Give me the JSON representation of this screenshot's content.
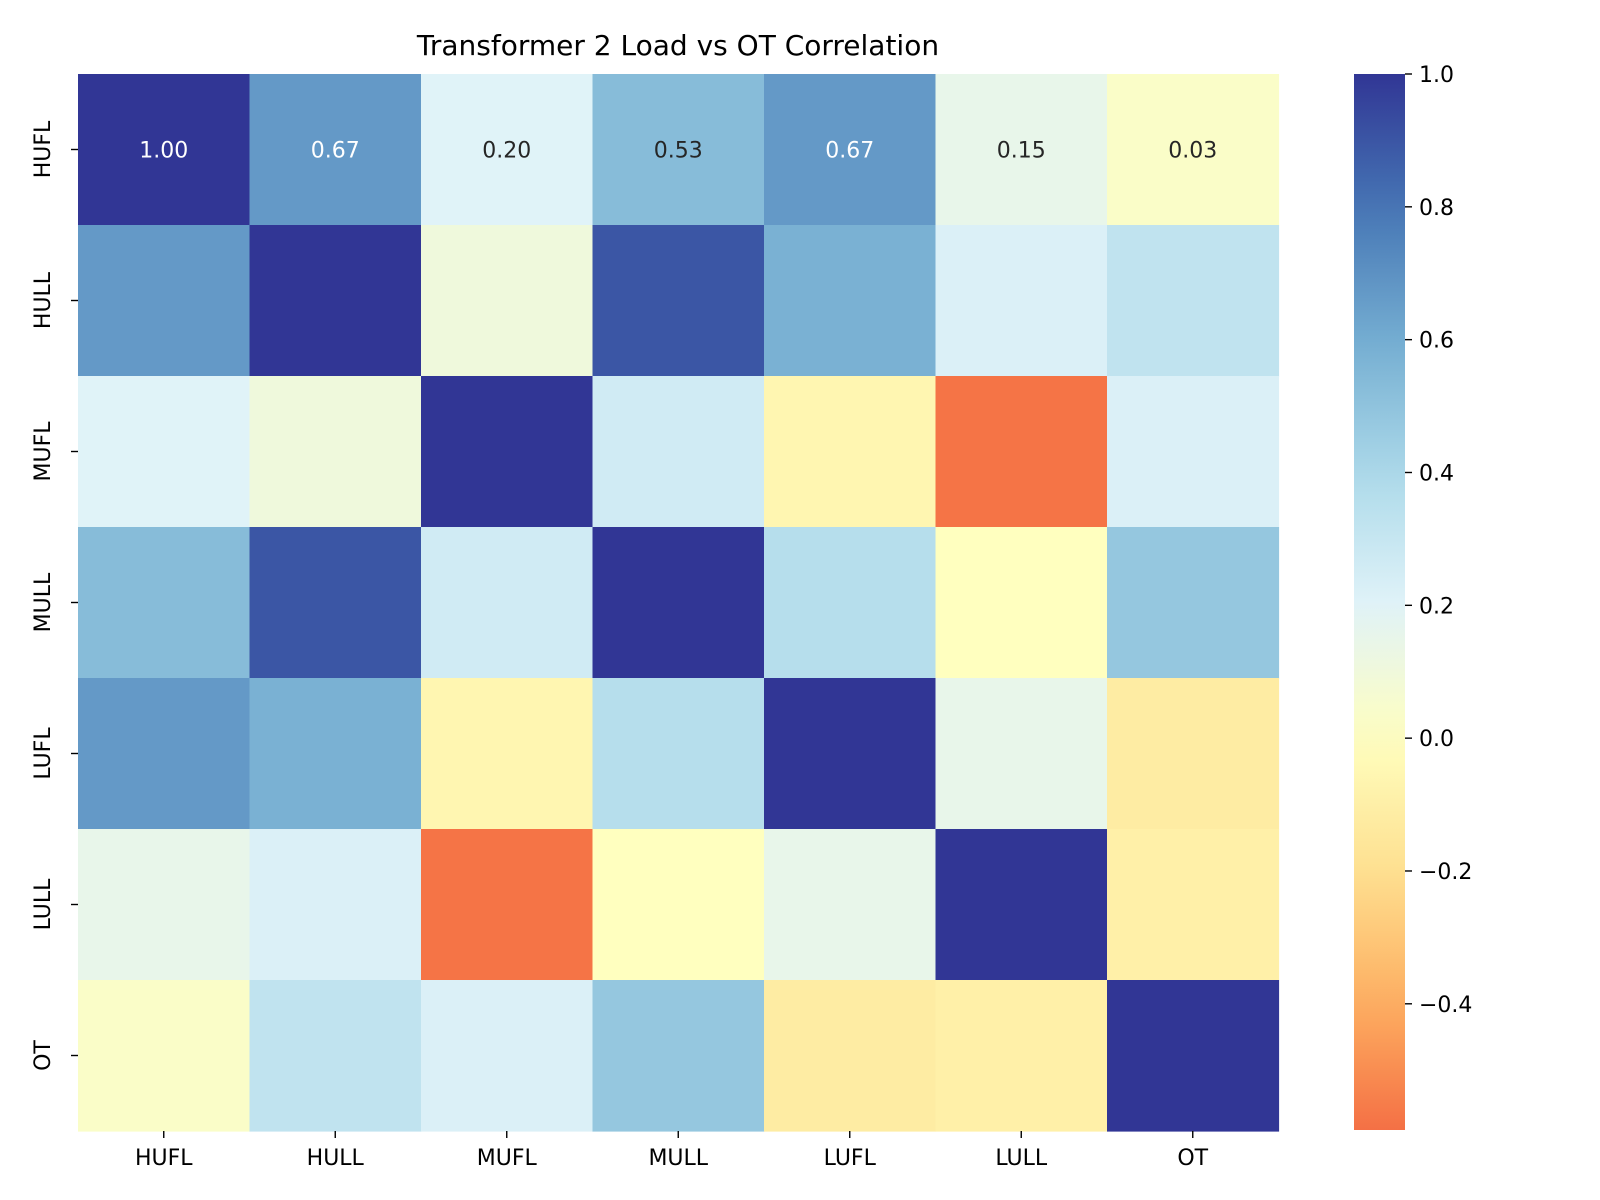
{
  "chart_data": {
    "type": "heatmap",
    "title": "Transformer 2 Load vs OT Correlation",
    "xlabel": "",
    "ylabel": "",
    "x_labels": [
      "HUFL",
      "HULL",
      "MUFL",
      "MULL",
      "LUFL",
      "LULL",
      "OT"
    ],
    "y_labels": [
      "HUFL",
      "HULL",
      "MUFL",
      "MULL",
      "LUFL",
      "LULL",
      "OT"
    ],
    "values": [
      [
        1.0,
        0.67,
        0.2,
        0.53,
        0.67,
        0.15,
        0.03
      ],
      [
        0.67,
        1.0,
        0.1,
        0.9,
        0.58,
        0.22,
        0.32
      ],
      [
        0.2,
        0.1,
        1.0,
        0.26,
        -0.06,
        -0.58,
        0.22
      ],
      [
        0.53,
        0.9,
        0.26,
        1.0,
        0.36,
        0.0,
        0.48
      ],
      [
        0.67,
        0.58,
        -0.06,
        0.36,
        1.0,
        0.15,
        -0.12
      ],
      [
        0.15,
        0.22,
        -0.58,
        0.0,
        0.15,
        1.0,
        -0.1
      ],
      [
        0.03,
        0.32,
        0.22,
        0.48,
        -0.12,
        -0.1,
        1.0
      ]
    ],
    "annotated_row": 0,
    "annotations": [
      "1.00",
      "0.67",
      "0.20",
      "0.53",
      "0.67",
      "0.15",
      "0.03"
    ],
    "colorbar": {
      "min": -0.59,
      "max": 1.0,
      "center": 0,
      "ticks": [
        1.0,
        0.8,
        0.6,
        0.4,
        0.2,
        0.0,
        -0.2,
        -0.4
      ],
      "tick_labels": [
        "1.0",
        "0.8",
        "0.6",
        "0.4",
        "0.2",
        "0.0",
        "−0.2",
        "−0.4"
      ]
    },
    "colormap": "RdYlBu",
    "grid": false,
    "legend": "none"
  }
}
